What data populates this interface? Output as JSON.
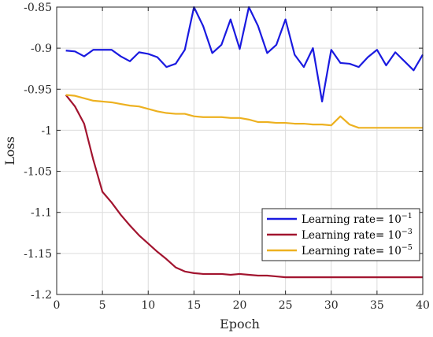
{
  "chart_data": {
    "type": "line",
    "xlabel": "Epoch",
    "ylabel": "Loss",
    "xlim": [
      0,
      40
    ],
    "ylim": [
      -1.2,
      -0.85
    ],
    "xticks": [
      0,
      5,
      10,
      15,
      20,
      25,
      30,
      35,
      40
    ],
    "yticks": [
      -0.85,
      -0.9,
      -0.95,
      -1,
      -1.05,
      -1.1,
      -1.15,
      -1.2
    ],
    "xtick_labels": [
      "0",
      "5",
      "10",
      "15",
      "20",
      "25",
      "30",
      "35",
      "40"
    ],
    "ytick_labels": [
      "-0.85",
      "-0.9",
      "-0.95",
      "-1",
      "-1.05",
      "-1.1",
      "-1.15",
      "-1.2"
    ],
    "grid": true,
    "legend_position": "bottom-right",
    "x": [
      1,
      2,
      3,
      4,
      5,
      6,
      7,
      8,
      9,
      10,
      11,
      12,
      13,
      14,
      15,
      16,
      17,
      18,
      19,
      20,
      21,
      22,
      23,
      24,
      25,
      26,
      27,
      28,
      29,
      30,
      31,
      32,
      33,
      34,
      35,
      36,
      37,
      38,
      39,
      40
    ],
    "series": [
      {
        "name": "Learning rate= 10",
        "exponent": "−1",
        "color": "#1a1ae0",
        "values": [
          -0.903,
          -0.904,
          -0.91,
          -0.902,
          -0.902,
          -0.902,
          -0.91,
          -0.916,
          -0.905,
          -0.907,
          -0.911,
          -0.923,
          -0.919,
          -0.902,
          -0.85,
          -0.873,
          -0.906,
          -0.896,
          -0.865,
          -0.901,
          -0.85,
          -0.873,
          -0.906,
          -0.896,
          -0.865,
          -0.908,
          -0.923,
          -0.9,
          -0.965,
          -0.902,
          -0.918,
          -0.919,
          -0.923,
          -0.911,
          -0.902,
          -0.921,
          -0.905,
          -0.916,
          -0.927,
          -0.908
        ]
      },
      {
        "name": "Learning rate= 10",
        "exponent": "−3",
        "color": "#a2142f",
        "values": [
          -0.957,
          -0.971,
          -0.992,
          -1.036,
          -1.075,
          -1.088,
          -1.103,
          -1.116,
          -1.128,
          -1.138,
          -1.148,
          -1.157,
          -1.167,
          -1.172,
          -1.174,
          -1.175,
          -1.175,
          -1.175,
          -1.176,
          -1.175,
          -1.176,
          -1.177,
          -1.177,
          -1.178,
          -1.179,
          -1.179,
          -1.179,
          -1.179,
          -1.179,
          -1.179,
          -1.179,
          -1.179,
          -1.179,
          -1.179,
          -1.179,
          -1.179,
          -1.179,
          -1.179,
          -1.179,
          -1.179
        ]
      },
      {
        "name": "Learning rate= 10",
        "exponent": "−5",
        "color": "#edb120",
        "values": [
          -0.957,
          -0.958,
          -0.961,
          -0.964,
          -0.965,
          -0.966,
          -0.968,
          -0.97,
          -0.971,
          -0.974,
          -0.977,
          -0.979,
          -0.98,
          -0.98,
          -0.983,
          -0.984,
          -0.984,
          -0.984,
          -0.985,
          -0.985,
          -0.987,
          -0.99,
          -0.99,
          -0.991,
          -0.991,
          -0.992,
          -0.992,
          -0.993,
          -0.993,
          -0.994,
          -0.983,
          -0.993,
          -0.997,
          -0.997,
          -0.997,
          -0.997,
          -0.997,
          -0.997,
          -0.997,
          -0.997
        ]
      }
    ]
  }
}
